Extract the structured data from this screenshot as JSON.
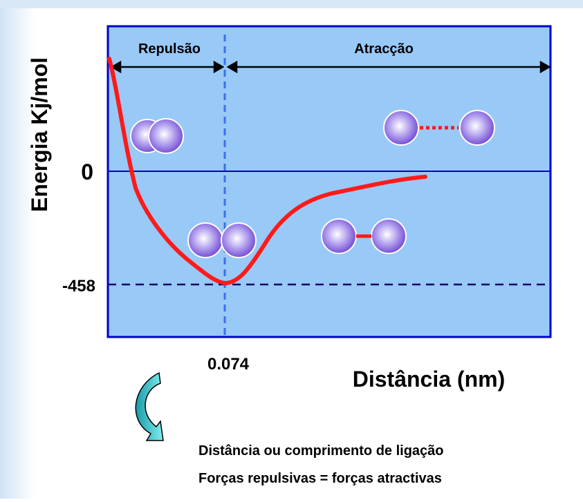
{
  "diagram": {
    "y_axis_label": "Energia Kj/mol",
    "zero_label": "0",
    "minimum_label": "-458",
    "distance_label": "0.074",
    "x_axis_label": "Distância (nm)",
    "region_repulsion": "Repulsão",
    "region_attraction": "Atracção",
    "notes": [
      "Distância ou comprimento de ligação",
      "Forças repulsivas = forças atractivas"
    ]
  }
}
